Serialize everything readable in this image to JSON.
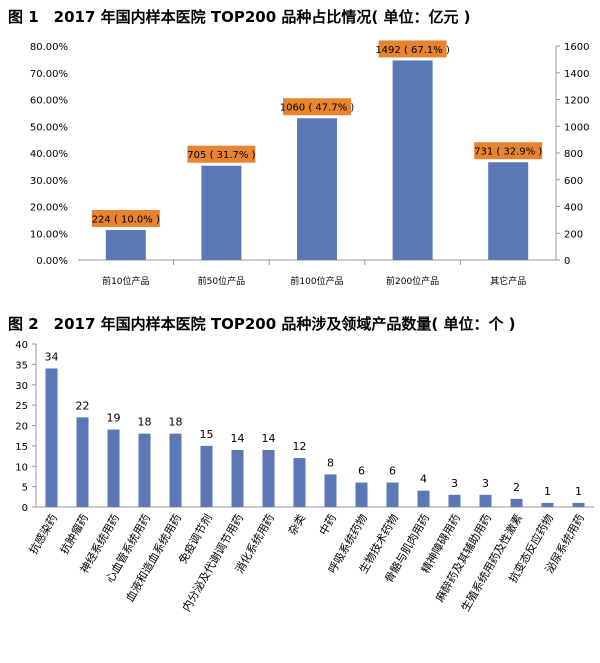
{
  "chart_data": [
    {
      "type": "bar",
      "title": "图 1　2017 年国内样本医院 TOP200 品种占比情况( 单位：亿元 )",
      "categories": [
        "前10位产品",
        "前50位产品",
        "前100位产品",
        "前200位产品",
        "其它产品"
      ],
      "values": [
        224,
        705,
        1060,
        1492,
        731
      ],
      "percent_values": [
        10.0,
        31.7,
        47.7,
        67.1,
        32.9
      ],
      "data_labels": [
        "224 ( 10.0% )",
        "705 ( 31.7% )",
        "1060 ( 47.7% )",
        "1492 ( 67.1% )",
        "731 ( 32.9% )"
      ],
      "y_left_ticks": [
        "0.00%",
        "10.00%",
        "20.00%",
        "30.00%",
        "40.00%",
        "50.00%",
        "60.00%",
        "70.00%",
        "80.00%"
      ],
      "y_right_ticks": [
        "0",
        "200",
        "400",
        "600",
        "800",
        "1000",
        "1200",
        "1400",
        "1600"
      ],
      "ylim": [
        0,
        1600
      ],
      "bar_color": "#5b77b5",
      "label_color": "#e8842f",
      "grid": false
    },
    {
      "type": "bar",
      "title": "图 2　2017 年国内样本医院 TOP200 品种涉及领域产品数量( 单位：个 )",
      "categories": [
        "抗感染药",
        "抗肿瘤药",
        "神经系统用药",
        "心血管系统用药",
        "血液和造血系统用药",
        "免疫调节剂",
        "内分泌及代谢调节用药",
        "消化系统用药",
        "杂类",
        "中药",
        "呼吸系统药物",
        "生物技术药物",
        "骨骼与肌肉用药",
        "精神障碍用药",
        "麻醉药及其辅助用药",
        "生殖系统用药及性激素",
        "抗变态反应药物",
        "泌尿系统用药"
      ],
      "values": [
        34,
        22,
        19,
        18,
        18,
        15,
        14,
        14,
        12,
        8,
        6,
        6,
        4,
        3,
        3,
        2,
        1,
        1
      ],
      "y_ticks": [
        "0",
        "5",
        "10",
        "15",
        "20",
        "25",
        "30",
        "35",
        "40"
      ],
      "ylim": [
        0,
        40
      ],
      "bar_color": "#5b77b5",
      "grid": false
    }
  ]
}
